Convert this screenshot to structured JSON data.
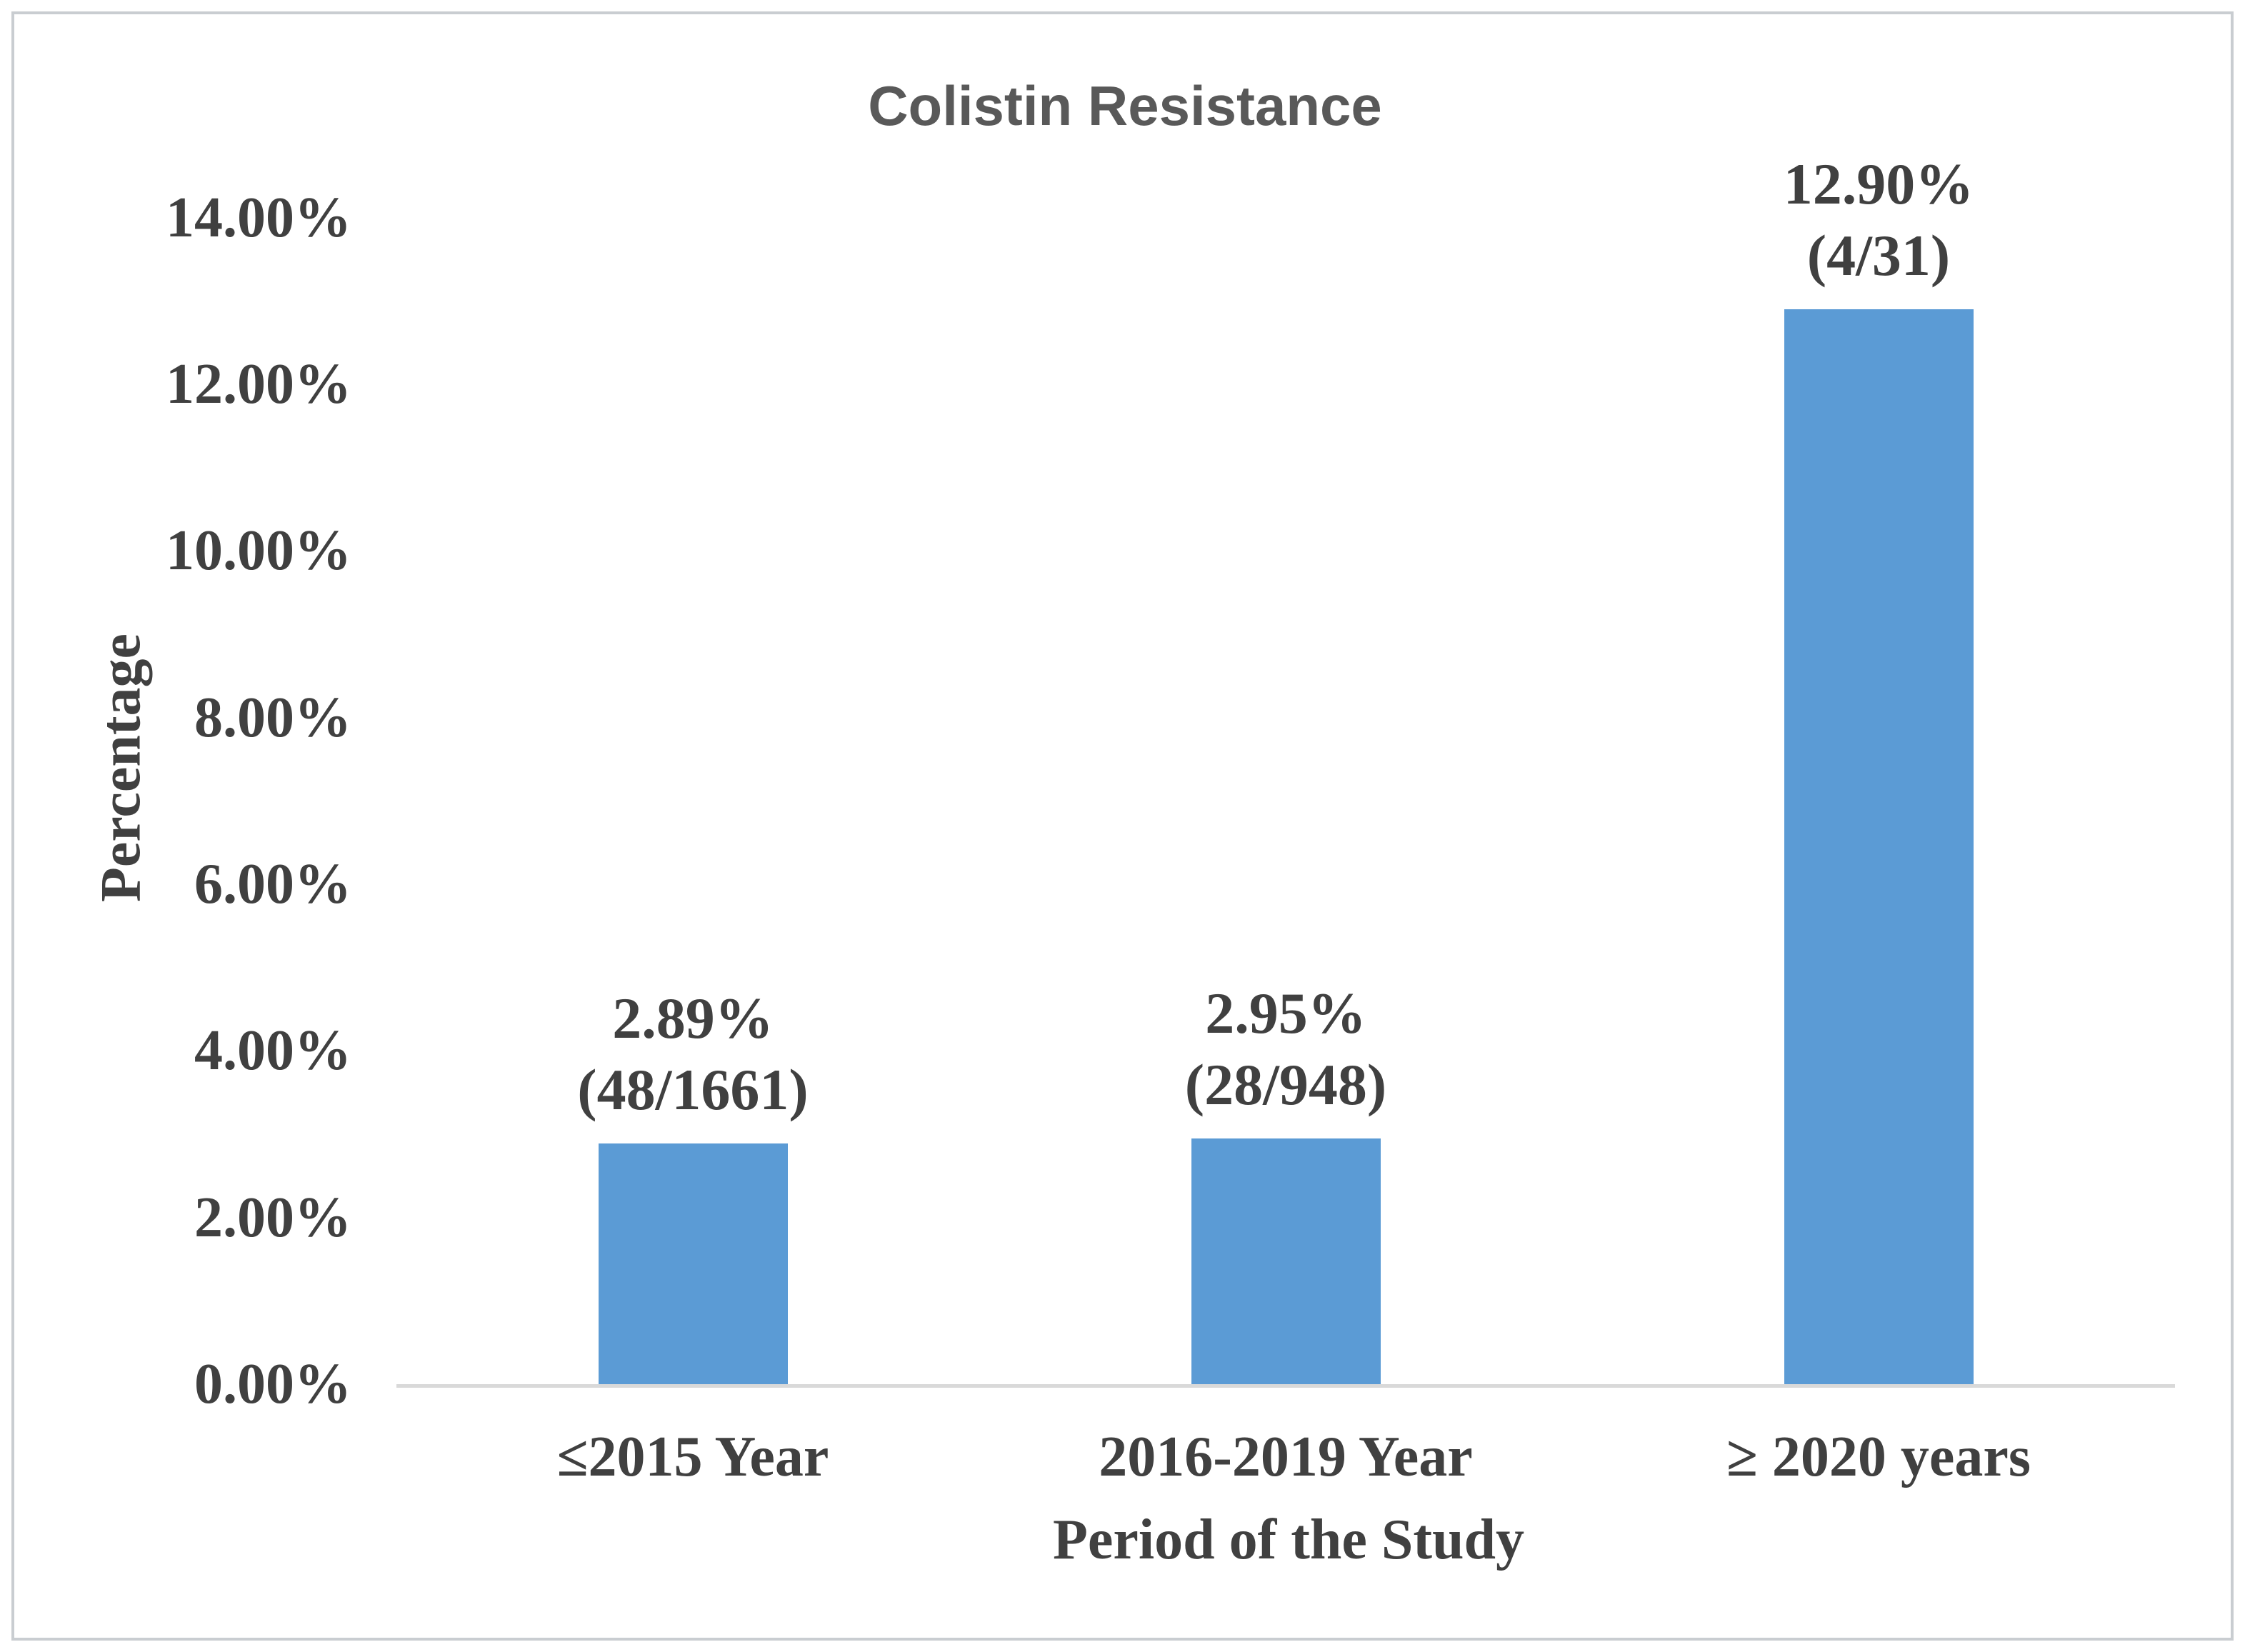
{
  "figure": {
    "title": "Colistin Resistance"
  },
  "chart_data": {
    "type": "bar",
    "title": "Colistin Resistance",
    "categories": [
      "≤2015 Year",
      "2016-2019 Year",
      "≥ 2020 years"
    ],
    "values": [
      2.89,
      2.95,
      12.9
    ],
    "bar_labels": [
      {
        "line1": "2.89%",
        "line2": "(48/1661)"
      },
      {
        "line1": "2.95%",
        "line2": "(28/948)"
      },
      {
        "line1": "12.90%",
        "line2": "(4/31)"
      }
    ],
    "xlabel": "Period of the Study",
    "ylabel": "Percentage",
    "ylim": [
      0,
      14
    ],
    "ytick_step": 2,
    "ytick_labels": [
      "0.00%",
      "2.00%",
      "4.00%",
      "6.00%",
      "8.00%",
      "10.00%",
      "12.00%",
      "14.00%"
    ],
    "grid": false,
    "legend": null,
    "colors": {
      "bar": "#5B9BD5",
      "axis_line": "#D9D9D9",
      "labels": "#404040",
      "title": "#595959"
    }
  }
}
